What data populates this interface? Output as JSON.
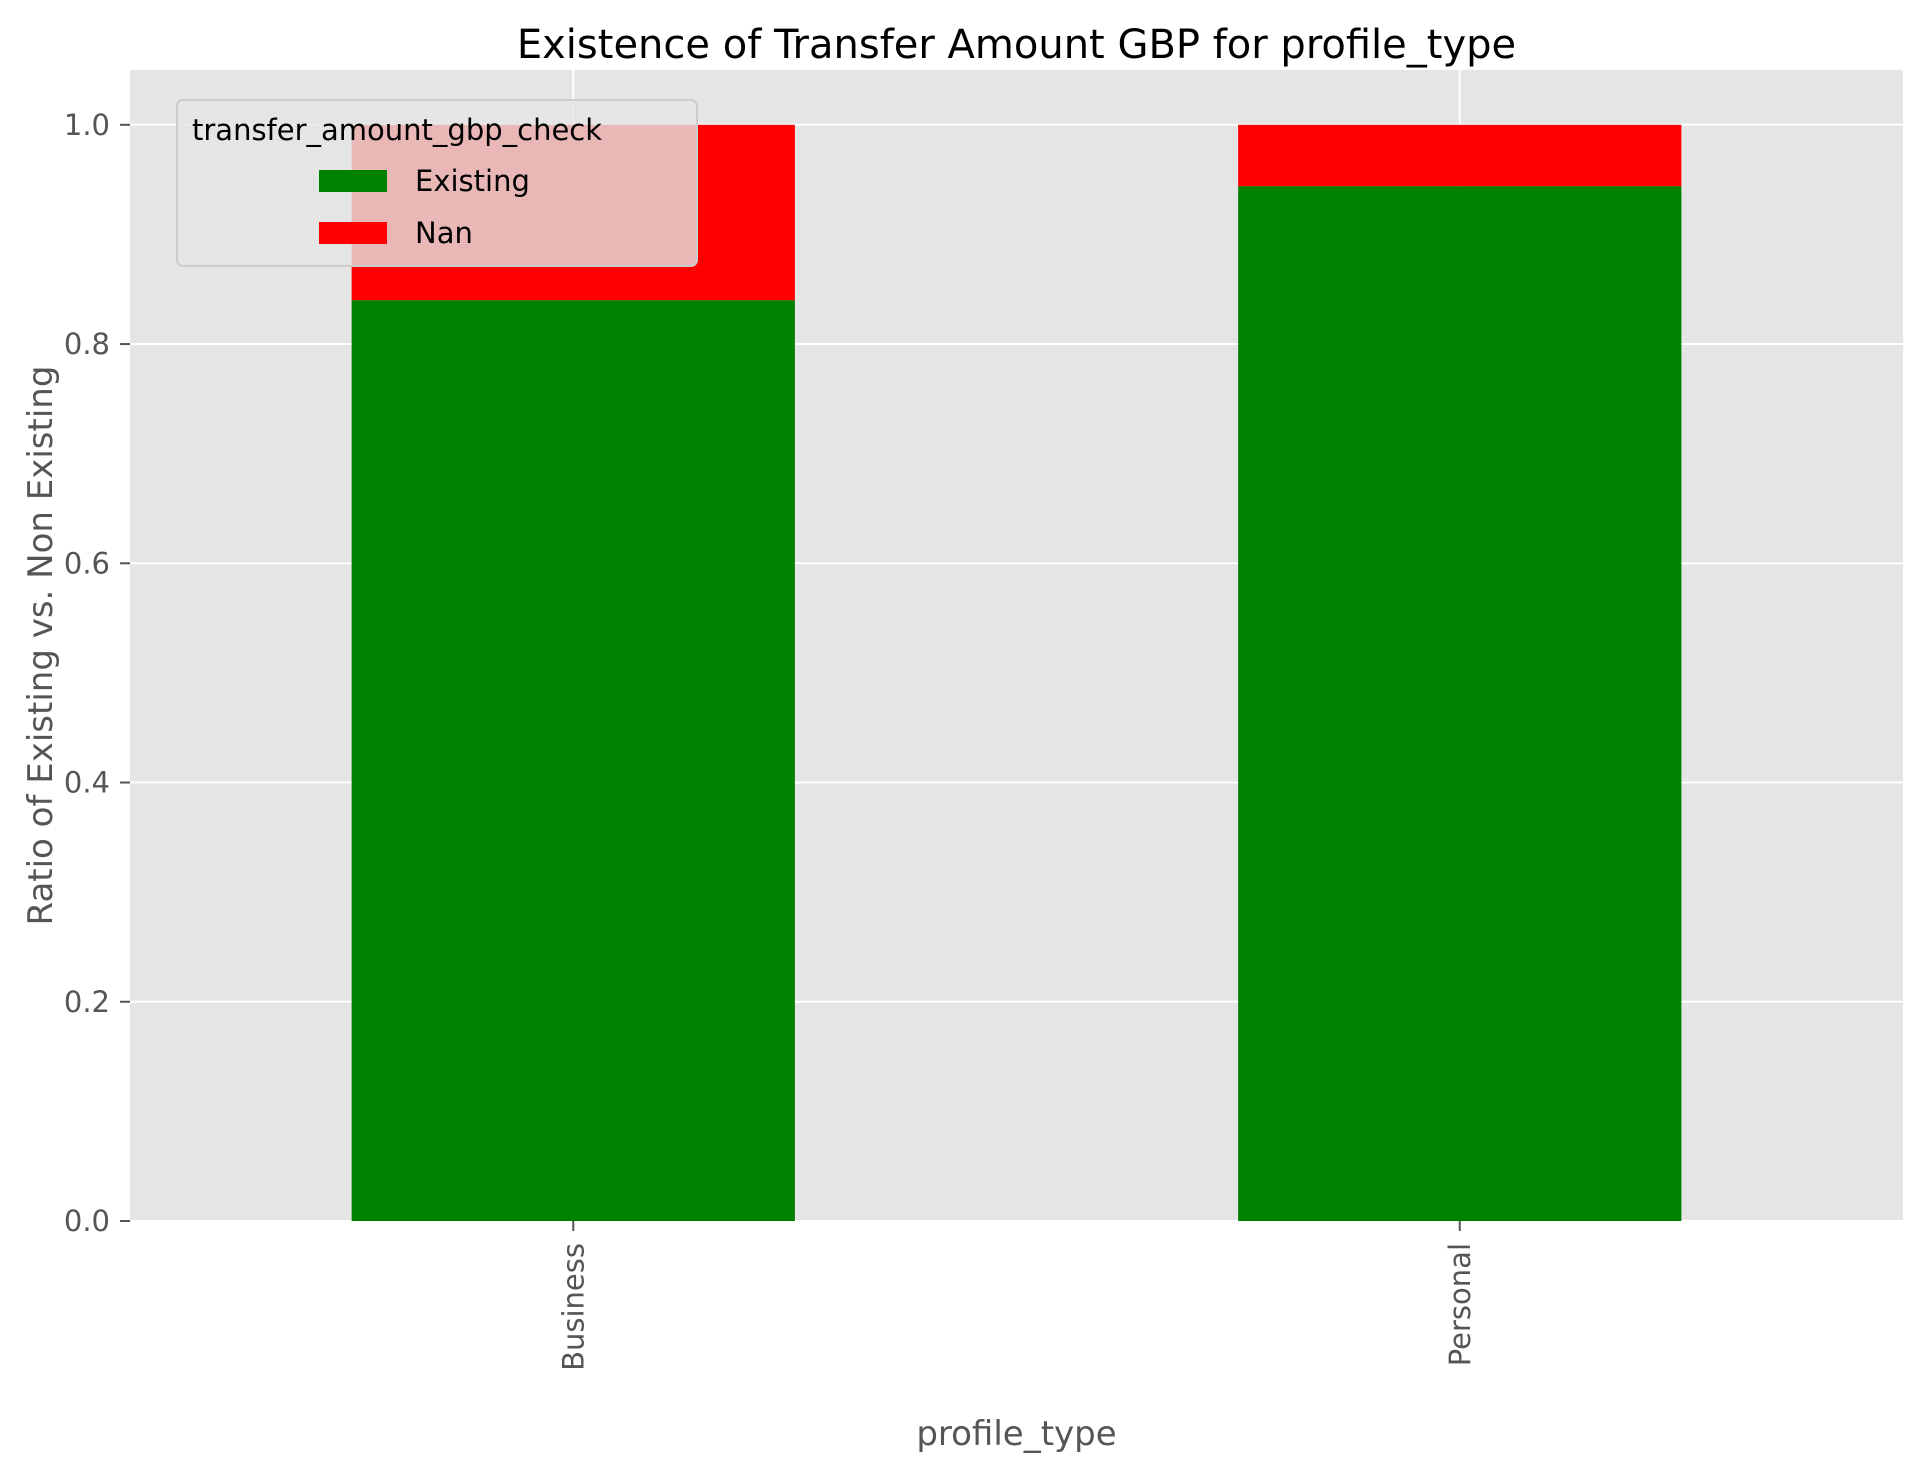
{
  "chart_data": {
    "type": "bar",
    "stacked": true,
    "title": "Existence of Transfer Amount GBP for profile_type",
    "xlabel": "profile_type",
    "ylabel": "Ratio of Existing vs. Non Existing",
    "categories": [
      "Business",
      "Personal"
    ],
    "series": [
      {
        "name": "Existing",
        "values": [
          0.84,
          0.944
        ],
        "color": "#008000"
      },
      {
        "name": "Nan",
        "values": [
          0.16,
          0.056
        ],
        "color": "#ff0000"
      }
    ],
    "ylim": [
      0,
      1.05
    ],
    "yticks": [
      0.0,
      0.2,
      0.4,
      0.6,
      0.8,
      1.0
    ],
    "ytick_labels": [
      "0.0",
      "0.2",
      "0.4",
      "0.6",
      "0.8",
      "1.0"
    ],
    "grid": true,
    "background": "#e5e5e5",
    "grid_color": "#ffffff",
    "legend": {
      "title": "transfer_amount_gbp_check",
      "placement": "upper-left"
    }
  }
}
